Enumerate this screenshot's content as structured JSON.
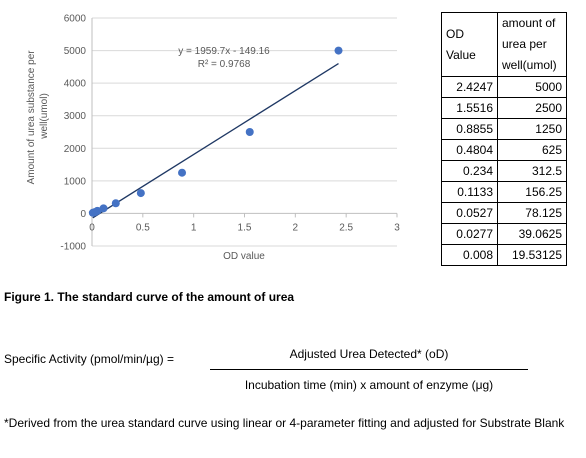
{
  "chart_data": {
    "type": "scatter",
    "ylabel": "Amount of urea substance per well(umol)",
    "xlabel": "OD value",
    "xlim": [
      0,
      3
    ],
    "ylim": [
      -1000,
      6000
    ],
    "x_ticks": [
      "0",
      "0.5",
      "1",
      "1.5",
      "2",
      "2.5",
      "3"
    ],
    "y_ticks": [
      "-1000",
      "0",
      "1000",
      "2000",
      "3000",
      "4000",
      "5000",
      "6000"
    ],
    "x": [
      2.4247,
      1.5516,
      0.8855,
      0.4804,
      0.234,
      0.1133,
      0.0527,
      0.0277,
      0.008
    ],
    "y": [
      5000,
      2500,
      1250,
      625,
      312.5,
      156.25,
      78.125,
      39.0625,
      19.53125
    ],
    "trendline": {
      "type": "linear",
      "slope": 1959.7,
      "intercept": -149.16
    },
    "equation": "y = 1959.7x - 149.16",
    "r_squared": "R² = 0.9768",
    "grid": "horizontal",
    "marker_color": "#4472c4",
    "trendline_color": "#1f3864"
  },
  "table": {
    "header_left": [
      "OD",
      "Value"
    ],
    "header_right": [
      "amount of",
      "urea per",
      "well(umol)"
    ],
    "rows": [
      [
        "2.4247",
        "5000"
      ],
      [
        "1.5516",
        "2500"
      ],
      [
        "0.8855",
        "1250"
      ],
      [
        "0.4804",
        "625"
      ],
      [
        "0.234",
        "312.5"
      ],
      [
        "0.1133",
        "156.25"
      ],
      [
        "0.0527",
        "78.125"
      ],
      [
        "0.0277",
        "39.0625"
      ],
      [
        "0.008",
        "19.53125"
      ]
    ]
  },
  "figure_caption": "Figure 1. The standard curve of the amount of urea",
  "formula": {
    "label": "Specific Activity (pmol/min/µg) =",
    "numerator": "Adjusted Urea Detected* (oD)",
    "denominator": "Incubation time (min) x amount of enzyme (μg)"
  },
  "footnote": "*Derived from the urea standard curve using linear or 4-parameter fitting and adjusted for Substrate Blank"
}
